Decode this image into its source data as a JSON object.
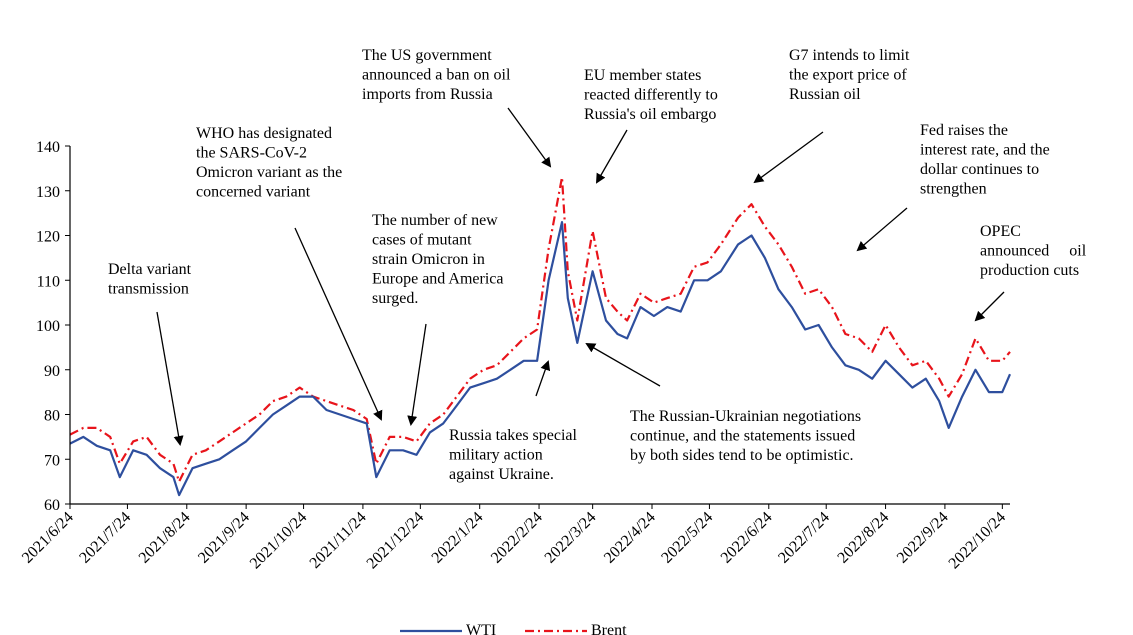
{
  "chart_data": {
    "type": "line",
    "title": "",
    "xlabel": "",
    "ylabel": "",
    "ylim": [
      60,
      140
    ],
    "yticks": [
      "60",
      "70",
      "80",
      "90",
      "100",
      "110",
      "120",
      "130",
      "140"
    ],
    "xticks": [
      "2021/6/24",
      "2021/7/24",
      "2021/8/24",
      "2021/9/24",
      "2021/10/24",
      "2021/11/24",
      "2021/12/24",
      "2022/1/24",
      "2022/2/24",
      "2022/3/24",
      "2022/4/24",
      "2022/5/24",
      "2022/6/24",
      "2022/7/24",
      "2022/8/24",
      "2022/9/24",
      "2022/10/24"
    ],
    "xlim": [
      "2021/6/24",
      "2022/10/28"
    ],
    "grid": false,
    "legend_position": "bottom",
    "colors": {
      "WTI": "#2e4f9e",
      "Brent": "#e8141b"
    },
    "series": [
      {
        "name": "WTI",
        "style": "solid",
        "dates": [
          "2021/6/24",
          "2021/7/1",
          "2021/7/8",
          "2021/7/15",
          "2021/7/20",
          "2021/7/27",
          "2021/8/3",
          "2021/8/10",
          "2021/8/17",
          "2021/8/20",
          "2021/8/27",
          "2021/9/3",
          "2021/9/10",
          "2021/9/17",
          "2021/9/24",
          "2021/10/1",
          "2021/10/8",
          "2021/10/15",
          "2021/10/22",
          "2021/10/29",
          "2021/11/5",
          "2021/11/12",
          "2021/11/19",
          "2021/11/26",
          "2021/12/1",
          "2021/12/8",
          "2021/12/15",
          "2021/12/22",
          "2021/12/29",
          "2022/1/5",
          "2022/1/12",
          "2022/1/19",
          "2022/1/26",
          "2022/2/2",
          "2022/2/9",
          "2022/2/16",
          "2022/2/23",
          "2022/3/1",
          "2022/3/8",
          "2022/3/11",
          "2022/3/16",
          "2022/3/24",
          "2022/3/31",
          "2022/4/6",
          "2022/4/11",
          "2022/4/18",
          "2022/4/25",
          "2022/5/2",
          "2022/5/9",
          "2022/5/16",
          "2022/5/23",
          "2022/5/30",
          "2022/6/8",
          "2022/6/15",
          "2022/6/22",
          "2022/6/29",
          "2022/7/6",
          "2022/7/13",
          "2022/7/20",
          "2022/7/27",
          "2022/8/3",
          "2022/8/10",
          "2022/8/17",
          "2022/8/24",
          "2022/8/31",
          "2022/9/7",
          "2022/9/14",
          "2022/9/21",
          "2022/9/26",
          "2022/10/3",
          "2022/10/10",
          "2022/10/17",
          "2022/10/24",
          "2022/10/28"
        ],
        "values": [
          73.5,
          75,
          73,
          72,
          66,
          72,
          71,
          68,
          66,
          62,
          68,
          69,
          70,
          72,
          74,
          77,
          80,
          82,
          84,
          84,
          81,
          80,
          79,
          78,
          66,
          72,
          72,
          71,
          76,
          78,
          82,
          86,
          87,
          88,
          90,
          92,
          92,
          110,
          123,
          106,
          96,
          112,
          101,
          98,
          97,
          104,
          102,
          104,
          103,
          110,
          110,
          112,
          118,
          120,
          115,
          108,
          104,
          99,
          100,
          95,
          91,
          90,
          88,
          92,
          89,
          86,
          88,
          83,
          77,
          84,
          90,
          85,
          85,
          89
        ]
      },
      {
        "name": "Brent",
        "style": "dash-dot",
        "dates": [
          "2021/6/24",
          "2021/7/1",
          "2021/7/8",
          "2021/7/15",
          "2021/7/20",
          "2021/7/27",
          "2021/8/3",
          "2021/8/10",
          "2021/8/17",
          "2021/8/20",
          "2021/8/27",
          "2021/9/3",
          "2021/9/10",
          "2021/9/17",
          "2021/9/24",
          "2021/10/1",
          "2021/10/8",
          "2021/10/15",
          "2021/10/22",
          "2021/10/29",
          "2021/11/5",
          "2021/11/12",
          "2021/11/19",
          "2021/11/26",
          "2021/12/1",
          "2021/12/8",
          "2021/12/15",
          "2021/12/22",
          "2021/12/29",
          "2022/1/5",
          "2022/1/12",
          "2022/1/19",
          "2022/1/26",
          "2022/2/2",
          "2022/2/9",
          "2022/2/16",
          "2022/2/23",
          "2022/3/1",
          "2022/3/8",
          "2022/3/11",
          "2022/3/16",
          "2022/3/24",
          "2022/3/31",
          "2022/4/6",
          "2022/4/11",
          "2022/4/18",
          "2022/4/25",
          "2022/5/2",
          "2022/5/9",
          "2022/5/16",
          "2022/5/23",
          "2022/5/30",
          "2022/6/8",
          "2022/6/15",
          "2022/6/22",
          "2022/6/29",
          "2022/7/6",
          "2022/7/13",
          "2022/7/20",
          "2022/7/27",
          "2022/8/3",
          "2022/8/10",
          "2022/8/17",
          "2022/8/24",
          "2022/8/31",
          "2022/9/7",
          "2022/9/14",
          "2022/9/21",
          "2022/9/26",
          "2022/10/3",
          "2022/10/10",
          "2022/10/17",
          "2022/10/24",
          "2022/10/28"
        ],
        "values": [
          75.5,
          77,
          77,
          75,
          69,
          74,
          75,
          71,
          69,
          65,
          71,
          72,
          74,
          76,
          78,
          80,
          83,
          84,
          86,
          84,
          83,
          82,
          81,
          79,
          69,
          75,
          75,
          74,
          78,
          80,
          84,
          88,
          90,
          91,
          94,
          97,
          99,
          117,
          133,
          112,
          101,
          121,
          106,
          103,
          101,
          107,
          105,
          106,
          107,
          113,
          114,
          118,
          124,
          127,
          122,
          118,
          113,
          107,
          108,
          104,
          98,
          97,
          94,
          100,
          95,
          91,
          92,
          88,
          84,
          89,
          97,
          92,
          92,
          94
        ]
      }
    ],
    "annotations": [
      {
        "id": "delta",
        "lines": [
          "Delta variant",
          "transmission"
        ]
      },
      {
        "id": "who",
        "lines": [
          "WHO has designated",
          "the SARS-CoV-2",
          "Omicron variant as the",
          "concerned variant"
        ]
      },
      {
        "id": "omicron-cases",
        "lines": [
          "The number of new",
          "cases of mutant",
          "strain Omicron in",
          "Europe and America",
          "surged."
        ]
      },
      {
        "id": "russia-action",
        "lines": [
          "Russia takes special",
          "military action",
          "against Ukraine."
        ]
      },
      {
        "id": "us-ban",
        "lines": [
          "The US government",
          "announced a ban on oil",
          "imports from Russia"
        ]
      },
      {
        "id": "eu-embargo",
        "lines": [
          "EU member states",
          "reacted differently to",
          "Russia's oil embargo"
        ]
      },
      {
        "id": "negotiations",
        "lines": [
          "The Russian-Ukrainian negotiations",
          "continue, and the statements issued",
          "by both sides tend to be optimistic."
        ]
      },
      {
        "id": "g7",
        "lines": [
          "G7 intends to limit",
          "the export price of",
          "Russian oil"
        ]
      },
      {
        "id": "fed",
        "lines": [
          "Fed raises the",
          "interest rate, and the",
          "dollar continues to",
          "strengthen"
        ]
      },
      {
        "id": "opec",
        "lines": [
          "OPEC",
          "announced     oil",
          "production cuts"
        ]
      }
    ],
    "legend": [
      {
        "name": "WTI",
        "label": "WTI"
      },
      {
        "name": "Brent",
        "label": "Brent"
      }
    ]
  }
}
